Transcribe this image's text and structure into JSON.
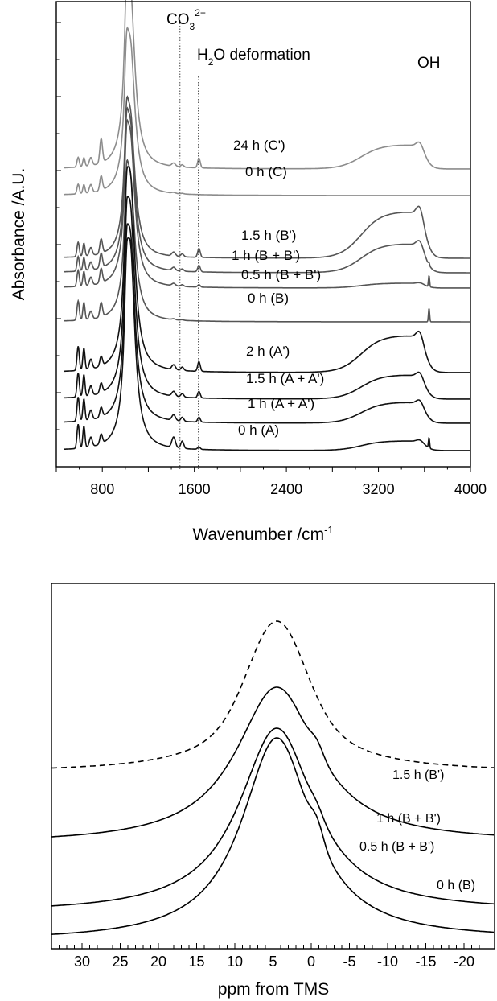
{
  "chart_data": [
    {
      "type": "line",
      "title": "",
      "xlabel": "Wavenumber /cm-1",
      "xlabel_main": "Wavenumber /cm",
      "xlabel_sup": "-1",
      "ylabel": "Absorbance /A.U.",
      "xlim": [
        400,
        4000
      ],
      "x_ticks": [
        800,
        1600,
        2400,
        3200,
        4000
      ],
      "y_ticks_labeled": false,
      "annotations": [
        {
          "label": "CO",
          "sub": "3",
          "sup": "2−",
          "x": 1475
        },
        {
          "label": "H",
          "sub": "2",
          "rest": "O deformation",
          "x": 1635
        },
        {
          "label": "OH⁻",
          "x": 3640
        }
      ],
      "series": [
        {
          "name": "24 h (C')",
          "color": "#8c8c8c"
        },
        {
          "name": "0 h (C)",
          "color": "#8c8c8c"
        },
        {
          "name": "1.5 h (B')",
          "color": "#555555"
        },
        {
          "name": "1 h (B + B')",
          "color": "#555555"
        },
        {
          "name": "0.5 h (B + B')",
          "color": "#555555"
        },
        {
          "name": "0 h (B)",
          "color": "#555555"
        },
        {
          "name": "2 h (A')",
          "color": "#111111"
        },
        {
          "name": "1.5 h (A + A')",
          "color": "#111111"
        },
        {
          "name": "1 h (A + A')",
          "color": "#111111"
        },
        {
          "name": "0 h (A)",
          "color": "#111111"
        }
      ]
    },
    {
      "type": "line",
      "title": "",
      "xlabel": "ppm from TMS",
      "ylabel": "",
      "xlim": [
        34,
        -24
      ],
      "x_reversed": true,
      "x_ticks": [
        30,
        25,
        20,
        15,
        10,
        5,
        0,
        -5,
        -10,
        -15,
        -20
      ],
      "series": [
        {
          "name": "1.5 h (B')",
          "style": "dashed"
        },
        {
          "name": "1 h (B + B')",
          "style": "solid"
        },
        {
          "name": "0.5 h (B + B')",
          "style": "solid"
        },
        {
          "name": "0 h (B)",
          "style": "solid"
        }
      ]
    }
  ]
}
